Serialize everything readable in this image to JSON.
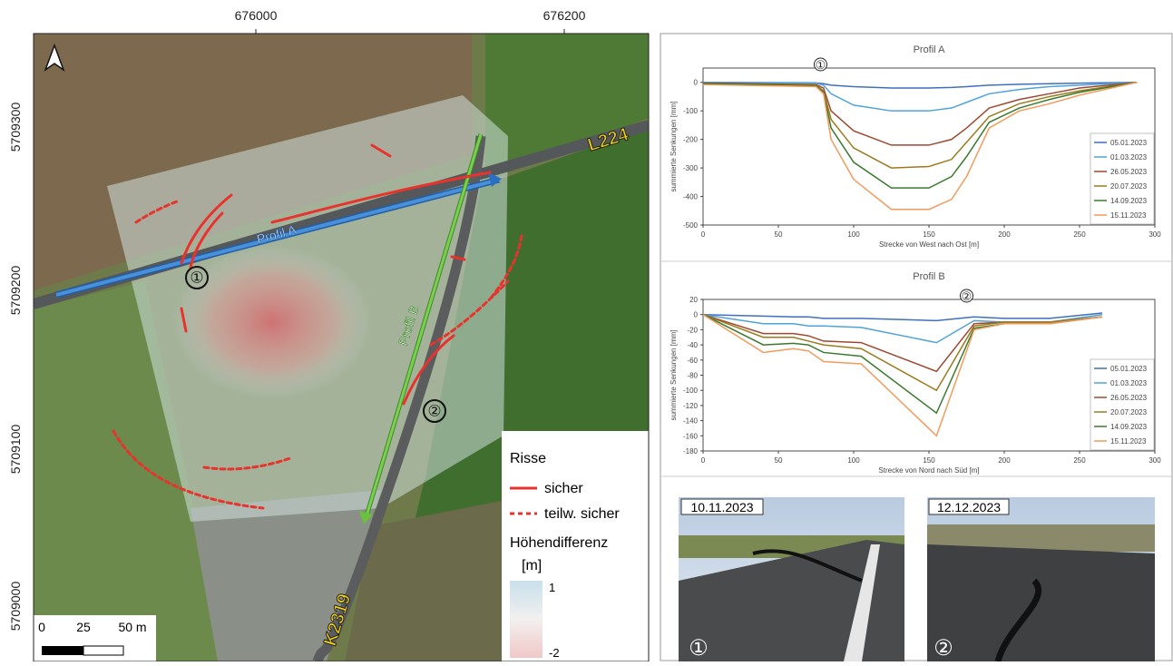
{
  "map": {
    "x_labels": [
      "676000",
      "676200"
    ],
    "y_labels": [
      "5709300",
      "5709200",
      "5709100",
      "5709000"
    ],
    "profile_a": "Profil A",
    "profile_b": "Profil B",
    "road_1": "L224",
    "road_2": "K2319",
    "marker_1": "①",
    "marker_2": "②",
    "scale": {
      "labels": [
        "0",
        "25",
        "50 m"
      ]
    },
    "legend": {
      "title": "Risse",
      "solid": "sicher",
      "dashed": "teilw. sicher",
      "height_title": "Höhendifferenz",
      "height_unit": "[m]",
      "height_max": "1",
      "height_min": "-2"
    }
  },
  "photos": [
    {
      "date": "10.11.2023",
      "marker": "①"
    },
    {
      "date": "12.12.2023",
      "marker": "②"
    }
  ],
  "chart_data": [
    {
      "type": "line",
      "title": "Profil A",
      "x_label": "Strecke von West nach Ost [m]",
      "y_label": "summierte Senkungen [mm]",
      "x": [
        0,
        75,
        80,
        85,
        100,
        125,
        150,
        165,
        175,
        190,
        210,
        230,
        250,
        288
      ],
      "xlim": [
        0,
        300
      ],
      "xticks": [
        0,
        50,
        100,
        150,
        200,
        250,
        300
      ],
      "ylim": [
        -500,
        50
      ],
      "yticks": [
        -500,
        -400,
        -300,
        -200,
        -100,
        0
      ],
      "legend": "lower right",
      "annotation": {
        "text": "①",
        "x": 78
      },
      "series": [
        {
          "name": "05.01.2023",
          "color": "#3f6fbf",
          "values": [
            0,
            -2,
            -5,
            -10,
            -15,
            -20,
            -20,
            -18,
            -15,
            -10,
            -7,
            -5,
            -3,
            0
          ]
        },
        {
          "name": "01.03.2023",
          "color": "#4ea3dc",
          "values": [
            0,
            -3,
            -10,
            -40,
            -80,
            -100,
            -100,
            -90,
            -70,
            -40,
            -25,
            -15,
            -10,
            0
          ]
        },
        {
          "name": "26.05.2023",
          "color": "#a0482f",
          "values": [
            -3,
            -8,
            -20,
            -100,
            -170,
            -220,
            -220,
            -200,
            -160,
            -90,
            -60,
            -40,
            -20,
            0
          ]
        },
        {
          "name": "20.07.2023",
          "color": "#9c7a1c",
          "values": [
            -5,
            -10,
            -30,
            -130,
            -230,
            -300,
            -295,
            -270,
            -210,
            -120,
            -75,
            -50,
            -30,
            0
          ]
        },
        {
          "name": "14.09.2023",
          "color": "#3b7a2e",
          "values": [
            -5,
            -12,
            -35,
            -160,
            -280,
            -370,
            -370,
            -330,
            -260,
            -140,
            -90,
            -60,
            -35,
            0
          ]
        },
        {
          "name": "15.11.2023",
          "color": "#f39a5b",
          "values": [
            -8,
            -15,
            -40,
            -200,
            -340,
            -445,
            -445,
            -410,
            -330,
            -160,
            -100,
            -75,
            -45,
            0
          ]
        }
      ]
    },
    {
      "type": "line",
      "title": "Profil B",
      "x_label": "Strecke von Nord nach Süd [m]",
      "y_label": "summierte Senkungen [mm]",
      "x": [
        0,
        40,
        60,
        70,
        80,
        105,
        155,
        180,
        200,
        230,
        265
      ],
      "xlim": [
        0,
        300
      ],
      "xticks": [
        0,
        50,
        100,
        150,
        200,
        250,
        300
      ],
      "ylim": [
        -180,
        20
      ],
      "yticks": [
        -180,
        -160,
        -140,
        -120,
        -100,
        -80,
        -60,
        -40,
        -20,
        0,
        20
      ],
      "legend": "lower right",
      "annotation": {
        "text": "②",
        "x": 175
      },
      "series": [
        {
          "name": "05.01.2023",
          "color": "#3f6fbf",
          "values": [
            0,
            -2,
            -3,
            -3,
            -5,
            -5,
            -8,
            -3,
            -5,
            -5,
            2
          ]
        },
        {
          "name": "01.03.2023",
          "color": "#4ea3dc",
          "values": [
            0,
            -12,
            -12,
            -15,
            -15,
            -17,
            -37,
            -8,
            -10,
            -10,
            0
          ]
        },
        {
          "name": "26.05.2023",
          "color": "#a0482f",
          "values": [
            0,
            -25,
            -25,
            -28,
            -35,
            -37,
            -75,
            -12,
            -10,
            -10,
            -3
          ]
        },
        {
          "name": "20.07.2023",
          "color": "#9c7a1c",
          "values": [
            0,
            -30,
            -30,
            -35,
            -40,
            -45,
            -100,
            -15,
            -10,
            -10,
            -3
          ]
        },
        {
          "name": "14.09.2023",
          "color": "#3b7a2e",
          "values": [
            0,
            -40,
            -38,
            -40,
            -50,
            -55,
            -130,
            -18,
            -12,
            -12,
            -3
          ]
        },
        {
          "name": "15.11.2023",
          "color": "#f39a5b",
          "values": [
            0,
            -50,
            -45,
            -48,
            -62,
            -65,
            -160,
            -20,
            -12,
            -12,
            -3
          ]
        }
      ]
    }
  ]
}
